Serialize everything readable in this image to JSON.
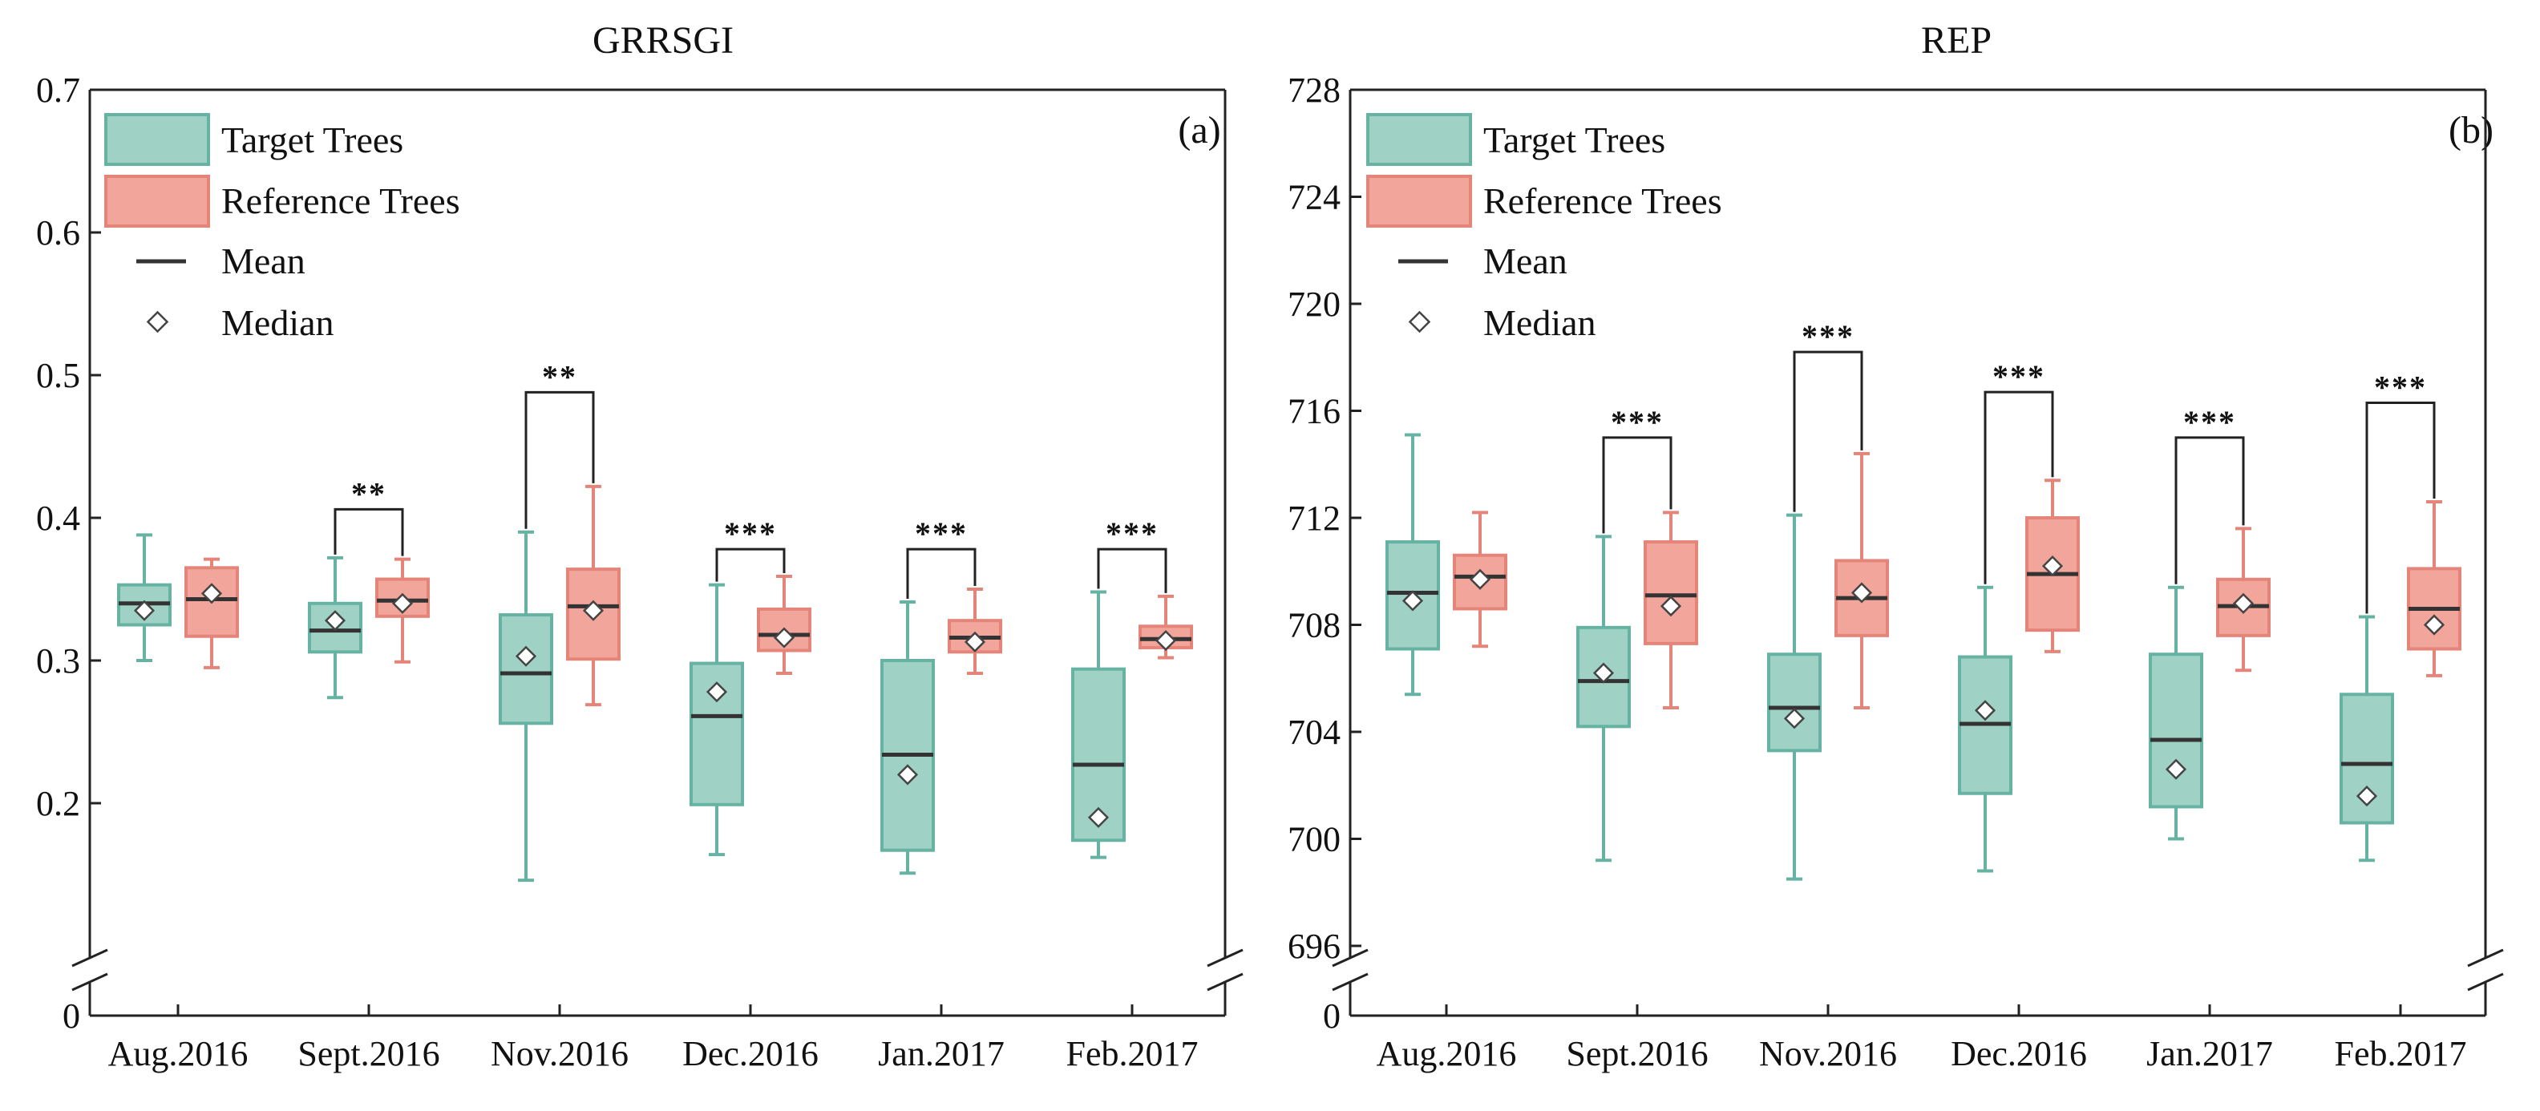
{
  "chart_data": [
    {
      "type": "box",
      "title": "GRRSGI",
      "panel_label": "(a)",
      "xlabel": "",
      "ylabel": "",
      "categories": [
        "Aug.2016",
        "Sept.2016",
        "Nov.2016",
        "Dec.2016",
        "Jan.2017",
        "Feb.2017"
      ],
      "ylim": [
        0,
        0.7
      ],
      "y_axis_break": {
        "from": 0,
        "to": 0.1
      },
      "yticks": [
        {
          "value": 0,
          "label": "0"
        },
        {
          "value": 0.2,
          "label": "0.2"
        },
        {
          "value": 0.3,
          "label": "0.3"
        },
        {
          "value": 0.4,
          "label": "0.4"
        },
        {
          "value": 0.5,
          "label": "0.5"
        },
        {
          "value": 0.6,
          "label": "0.6"
        },
        {
          "value": 0.7,
          "label": "0.7"
        }
      ],
      "legend": {
        "position": "top-left",
        "entries": [
          "Target Trees",
          "Reference Trees",
          "Mean",
          "Median"
        ]
      },
      "series": [
        {
          "name": "Target Trees",
          "color": "#9fd2c5",
          "edge": "#66b3a3",
          "boxes": [
            {
              "whisker_low": 0.3,
              "q1": 0.325,
              "mean": 0.34,
              "q3": 0.353,
              "whisker_high": 0.388,
              "median": 0.335
            },
            {
              "whisker_low": 0.274,
              "q1": 0.306,
              "mean": 0.321,
              "q3": 0.34,
              "whisker_high": 0.372,
              "median": 0.328
            },
            {
              "whisker_low": 0.146,
              "q1": 0.256,
              "mean": 0.291,
              "q3": 0.332,
              "whisker_high": 0.39,
              "median": 0.303
            },
            {
              "whisker_low": 0.164,
              "q1": 0.199,
              "mean": 0.261,
              "q3": 0.298,
              "whisker_high": 0.353,
              "median": 0.278
            },
            {
              "whisker_low": 0.151,
              "q1": 0.167,
              "mean": 0.234,
              "q3": 0.3,
              "whisker_high": 0.341,
              "median": 0.22
            },
            {
              "whisker_low": 0.162,
              "q1": 0.174,
              "mean": 0.227,
              "q3": 0.294,
              "whisker_high": 0.348,
              "median": 0.19
            }
          ]
        },
        {
          "name": "Reference Trees",
          "color": "#f2a59a",
          "edge": "#e5857a",
          "boxes": [
            {
              "whisker_low": 0.295,
              "q1": 0.317,
              "mean": 0.343,
              "q3": 0.365,
              "whisker_high": 0.371,
              "median": 0.347
            },
            {
              "whisker_low": 0.299,
              "q1": 0.331,
              "mean": 0.342,
              "q3": 0.357,
              "whisker_high": 0.371,
              "median": 0.34
            },
            {
              "whisker_low": 0.269,
              "q1": 0.301,
              "mean": 0.338,
              "q3": 0.364,
              "whisker_high": 0.422,
              "median": 0.335
            },
            {
              "whisker_low": 0.291,
              "q1": 0.307,
              "mean": 0.318,
              "q3": 0.336,
              "whisker_high": 0.359,
              "median": 0.316
            },
            {
              "whisker_low": 0.291,
              "q1": 0.306,
              "mean": 0.316,
              "q3": 0.328,
              "whisker_high": 0.35,
              "median": 0.313
            },
            {
              "whisker_low": 0.302,
              "q1": 0.309,
              "mean": 0.315,
              "q3": 0.324,
              "whisker_high": 0.345,
              "median": 0.314
            }
          ]
        }
      ],
      "significance": [
        {
          "category": "Sept.2016",
          "label": "**",
          "level": 0.406
        },
        {
          "category": "Nov.2016",
          "label": "**",
          "level": 0.488
        },
        {
          "category": "Dec.2016",
          "label": "***",
          "level": 0.378
        },
        {
          "category": "Jan.2017",
          "label": "***",
          "level": 0.378
        },
        {
          "category": "Feb.2017",
          "label": "***",
          "level": 0.378
        }
      ]
    },
    {
      "type": "box",
      "title": "REP",
      "panel_label": "(b)",
      "xlabel": "",
      "ylabel": "",
      "categories": [
        "Aug.2016",
        "Sept.2016",
        "Nov.2016",
        "Dec.2016",
        "Jan.2017",
        "Feb.2017"
      ],
      "ylim": [
        0,
        728
      ],
      "y_axis_break": {
        "from": 0,
        "to": 696
      },
      "yticks": [
        {
          "value": 0,
          "label": "0"
        },
        {
          "value": 696,
          "label": "696"
        },
        {
          "value": 700,
          "label": "700"
        },
        {
          "value": 704,
          "label": "704"
        },
        {
          "value": 708,
          "label": "708"
        },
        {
          "value": 712,
          "label": "712"
        },
        {
          "value": 716,
          "label": "716"
        },
        {
          "value": 720,
          "label": "720"
        },
        {
          "value": 724,
          "label": "724"
        },
        {
          "value": 728,
          "label": "728"
        }
      ],
      "legend": {
        "position": "top-left",
        "entries": [
          "Target Trees",
          "Reference Trees",
          "Mean",
          "Median"
        ]
      },
      "series": [
        {
          "name": "Target Trees",
          "color": "#9fd2c5",
          "edge": "#66b3a3",
          "boxes": [
            {
              "whisker_low": 705.4,
              "q1": 707.1,
              "mean": 709.2,
              "q3": 711.1,
              "whisker_high": 715.1,
              "median": 708.9
            },
            {
              "whisker_low": 699.2,
              "q1": 704.2,
              "mean": 705.9,
              "q3": 707.9,
              "whisker_high": 711.3,
              "median": 706.2
            },
            {
              "whisker_low": 698.5,
              "q1": 703.3,
              "mean": 704.9,
              "q3": 706.9,
              "whisker_high": 712.1,
              "median": 704.5
            },
            {
              "whisker_low": 698.8,
              "q1": 701.7,
              "mean": 704.3,
              "q3": 706.8,
              "whisker_high": 709.4,
              "median": 704.8
            },
            {
              "whisker_low": 700.0,
              "q1": 701.2,
              "mean": 703.7,
              "q3": 706.9,
              "whisker_high": 709.4,
              "median": 702.6
            },
            {
              "whisker_low": 699.2,
              "q1": 700.6,
              "mean": 702.8,
              "q3": 705.4,
              "whisker_high": 708.3,
              "median": 701.6
            }
          ]
        },
        {
          "name": "Reference Trees",
          "color": "#f2a59a",
          "edge": "#e5857a",
          "boxes": [
            {
              "whisker_low": 707.2,
              "q1": 708.6,
              "mean": 709.8,
              "q3": 710.6,
              "whisker_high": 712.2,
              "median": 709.7
            },
            {
              "whisker_low": 704.9,
              "q1": 707.3,
              "mean": 709.1,
              "q3": 711.1,
              "whisker_high": 712.2,
              "median": 708.7
            },
            {
              "whisker_low": 704.9,
              "q1": 707.6,
              "mean": 709.0,
              "q3": 710.4,
              "whisker_high": 714.4,
              "median": 709.2
            },
            {
              "whisker_low": 707.0,
              "q1": 707.8,
              "mean": 709.9,
              "q3": 712.0,
              "whisker_high": 713.4,
              "median": 710.2
            },
            {
              "whisker_low": 706.3,
              "q1": 707.6,
              "mean": 708.7,
              "q3": 709.7,
              "whisker_high": 711.6,
              "median": 708.8
            },
            {
              "whisker_low": 706.1,
              "q1": 707.1,
              "mean": 708.6,
              "q3": 710.1,
              "whisker_high": 712.6,
              "median": 708.0
            }
          ]
        }
      ],
      "significance": [
        {
          "category": "Sept.2016",
          "label": "***",
          "level": 715.0
        },
        {
          "category": "Nov.2016",
          "label": "***",
          "level": 718.2
        },
        {
          "category": "Dec.2016",
          "label": "***",
          "level": 716.7
        },
        {
          "category": "Jan.2017",
          "label": "***",
          "level": 715.0
        },
        {
          "category": "Feb.2017",
          "label": "***",
          "level": 716.3
        }
      ]
    }
  ]
}
